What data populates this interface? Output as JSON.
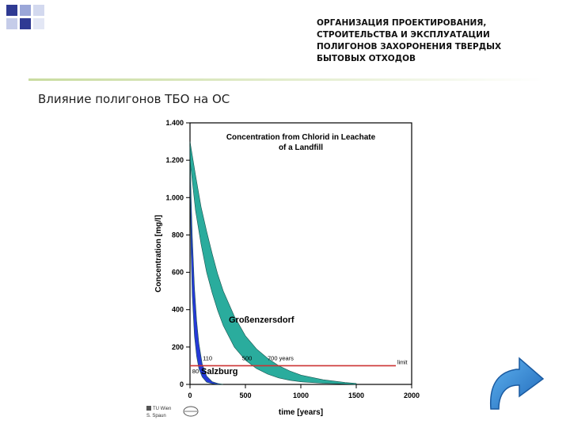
{
  "slide": {
    "header_lines": [
      "ОРГАНИЗАЦИЯ ПРОЕКТИРОВАНИЯ,",
      "СТРОИТЕЛЬСТВА И ЭКСПЛУАТАЦИИ",
      "ПОЛИГОНОВ ЗАХОРОНЕНИЯ ТВЕРДЫХ",
      "БЫТОВЫХ ОТХОДОВ"
    ],
    "subtitle": "Влияние полигонов ТБО на ОС",
    "next_icon": "curved-arrow-icon",
    "accent_color": "#2e7fd0",
    "logo_text": [
      "TU Wien",
      "S. Spaun"
    ]
  },
  "chart_data": {
    "type": "area",
    "title_lines": [
      "Concentration from Chlorid in Leachate",
      "of a Landfill"
    ],
    "xlabel": "time [years]",
    "ylabel": "Concentration [mg/l]",
    "xlim": [
      0,
      2000
    ],
    "ylim": [
      0,
      1400
    ],
    "x_ticks": [
      0,
      500,
      1000,
      1500,
      2000
    ],
    "x_tick_labels": [
      "0",
      "500",
      "1000",
      "1500",
      "2000"
    ],
    "y_ticks": [
      0,
      200,
      400,
      600,
      800,
      1000,
      1200,
      1400
    ],
    "y_tick_labels": [
      "0",
      "200",
      "400",
      "600",
      "800",
      "1.000",
      "1.200",
      "1.400"
    ],
    "limit": {
      "value": 100,
      "label": "limit",
      "color": "#cc3333"
    },
    "series": [
      {
        "name": "Großenzersdorf",
        "color": "#1fa898",
        "x": [
          0,
          50,
          100,
          150,
          200,
          250,
          300,
          400,
          500,
          600,
          700,
          800,
          900,
          1000,
          1200,
          1400,
          1500
        ],
        "upper": [
          1300,
          1120,
          950,
          820,
          700,
          590,
          500,
          365,
          260,
          190,
          140,
          100,
          72,
          50,
          25,
          10,
          5
        ],
        "lower": [
          1200,
          930,
          750,
          600,
          490,
          395,
          315,
          200,
          130,
          85,
          55,
          35,
          22,
          14,
          6,
          2,
          0
        ]
      },
      {
        "name": "Salzburg",
        "color": "#1a2fd6",
        "x": [
          0,
          10,
          20,
          40,
          60,
          80,
          110,
          150,
          200,
          250,
          300
        ],
        "upper": [
          1270,
          1000,
          800,
          520,
          340,
          220,
          110,
          45,
          15,
          5,
          0
        ],
        "lower": [
          1150,
          700,
          480,
          260,
          150,
          85,
          40,
          12,
          4,
          0,
          0
        ]
      }
    ],
    "annotations": [
      {
        "text": "110",
        "x": 115,
        "y": 130
      },
      {
        "text": "500",
        "x": 470,
        "y": 130
      },
      {
        "text": "700 years",
        "x": 700,
        "y": 130
      },
      {
        "text": "80",
        "x": 20,
        "y": 60
      }
    ],
    "grid": false,
    "legend": "none"
  }
}
